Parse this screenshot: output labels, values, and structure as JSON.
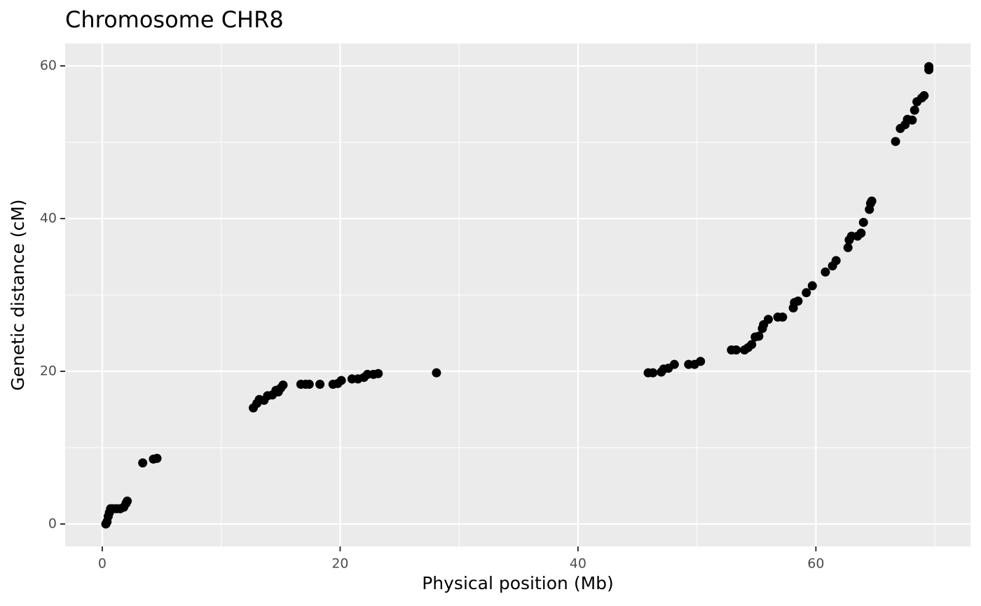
{
  "chart_data": {
    "type": "scatter",
    "title": "Chromosome CHR8",
    "xlabel": "Physical position (Mb)",
    "ylabel": "Genetic distance (cM)",
    "color": "#000000",
    "x": [
      0.3,
      0.4,
      0.5,
      0.6,
      0.7,
      0.9,
      1.2,
      1.5,
      1.8,
      2.0,
      2.1,
      3.4,
      4.3,
      4.6,
      12.7,
      13.0,
      13.2,
      13.6,
      13.9,
      14.3,
      14.6,
      14.8,
      15.0,
      15.2,
      16.7,
      17.1,
      17.4,
      18.3,
      19.4,
      19.8,
      20.1,
      21.0,
      21.5,
      22.0,
      22.3,
      22.8,
      23.2,
      28.1,
      45.9,
      46.3,
      47.0,
      47.2,
      47.6,
      48.1,
      49.3,
      49.8,
      50.3,
      52.9,
      53.3,
      54.0,
      54.3,
      54.6,
      54.9,
      55.2,
      55.5,
      55.6,
      56.0,
      56.8,
      57.2,
      58.1,
      58.2,
      58.5,
      59.2,
      59.7,
      60.8,
      61.4,
      61.7,
      62.7,
      62.8,
      63.0,
      63.5,
      63.8,
      64.0,
      64.5,
      64.6,
      64.7,
      66.7,
      67.1,
      67.5,
      67.7,
      68.1,
      68.3,
      68.5,
      68.9,
      69.1,
      69.5,
      69.5
    ],
    "y": [
      0,
      0.3,
      1,
      1.5,
      2,
      2,
      2,
      2,
      2.2,
      2.7,
      3,
      8,
      8.5,
      8.6,
      15.2,
      15.8,
      16.3,
      16.2,
      16.8,
      16.9,
      17.5,
      17.3,
      17.8,
      18.2,
      18.3,
      18.3,
      18.3,
      18.3,
      18.3,
      18.4,
      18.8,
      19,
      19,
      19.2,
      19.6,
      19.6,
      19.7,
      19.8,
      19.8,
      19.8,
      19.9,
      20.3,
      20.4,
      20.9,
      20.9,
      20.9,
      21.3,
      22.8,
      22.8,
      22.8,
      23.1,
      23.5,
      24.5,
      24.6,
      25.6,
      26.1,
      26.8,
      27.1,
      27.1,
      28.3,
      29,
      29.2,
      30.3,
      31.2,
      33,
      33.8,
      34.5,
      36.2,
      37.2,
      37.7,
      37.7,
      38.1,
      39.5,
      41.2,
      42,
      42.3,
      50.1,
      51.8,
      52.3,
      53,
      52.9,
      54.2,
      55.3,
      55.8,
      56.1,
      59.5,
      59.9
    ],
    "xlim": [
      -3.12,
      73.0
    ],
    "ylim": [
      -2.94,
      62.94
    ],
    "xticks": [
      0,
      20,
      40,
      60
    ],
    "yticks": [
      0,
      20,
      40,
      60
    ],
    "x_minor_ticks": [
      10,
      30,
      50,
      70
    ],
    "y_minor_ticks": [
      10,
      30,
      50
    ],
    "grid": true
  }
}
